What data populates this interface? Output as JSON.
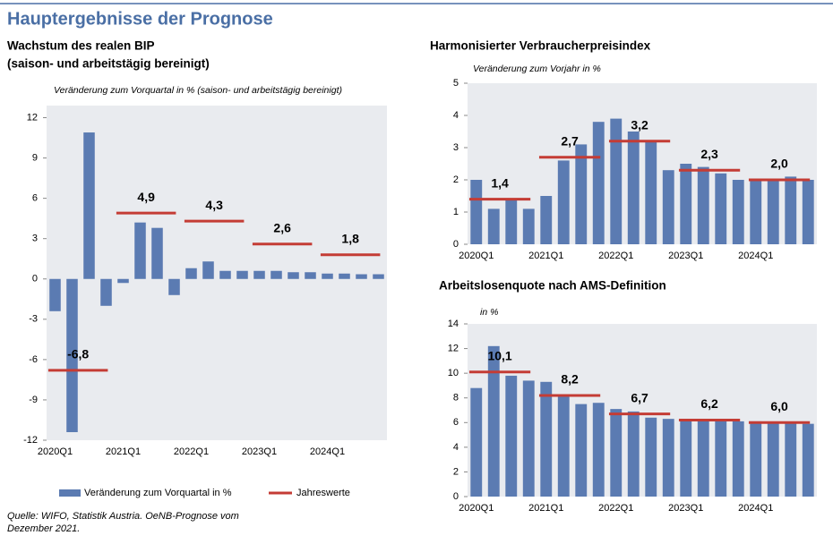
{
  "header": {
    "title": "Hauptergebnisse der Prognose"
  },
  "source": [
    "Quelle: WIFO, Statistik Austria. OeNB-Prognose vom",
    "Dezember 2021."
  ],
  "chart_data": [
    {
      "type": "bar",
      "title": [
        "Wachstum des realen BIP",
        "(saison- und arbeitstägig bereinigt)"
      ],
      "subtitle": "Veränderung zum Vorquartal in % (saison- und arbeitstägig bereinigt)",
      "categories": [
        "2020Q1",
        null,
        null,
        null,
        "2021Q1",
        null,
        null,
        null,
        "2022Q1",
        null,
        null,
        null,
        "2023Q1",
        null,
        null,
        null,
        "2024Q1",
        null,
        null,
        null
      ],
      "series": [
        {
          "name": "Veränderung zum Vorquartal in %",
          "color": "#5b7bb2",
          "values": [
            -2.4,
            -11.4,
            10.9,
            -2.0,
            -0.3,
            4.2,
            3.8,
            -1.2,
            0.8,
            1.3,
            0.6,
            0.6,
            0.6,
            0.6,
            0.5,
            0.5,
            0.4,
            0.4,
            0.35,
            0.35
          ]
        }
      ],
      "annual": {
        "name": "Jahreswerte",
        "color": "#c43c35",
        "values": [
          -6.8,
          4.9,
          4.3,
          2.6,
          1.8
        ],
        "value_labels": [
          "-6,8",
          "4,9",
          "4,3",
          "2,6",
          "1,8"
        ]
      },
      "ylim": [
        -12,
        12.9
      ],
      "yticks": [
        -12,
        -9,
        -6,
        -3,
        0,
        3,
        6,
        9,
        12
      ],
      "legend": true
    },
    {
      "type": "bar",
      "title": [
        "Harmonisierter Verbraucherpreisindex"
      ],
      "subtitle": "Veränderung zum Vorjahr in %",
      "categories": [
        "2020Q1",
        null,
        null,
        null,
        "2021Q1",
        null,
        null,
        null,
        "2022Q1",
        null,
        null,
        null,
        "2023Q1",
        null,
        null,
        null,
        "2024Q1",
        null,
        null,
        null
      ],
      "series": [
        {
          "color": "#5b7bb2",
          "values": [
            2.0,
            1.1,
            1.4,
            1.1,
            1.5,
            2.6,
            3.1,
            3.8,
            3.9,
            3.5,
            3.2,
            2.3,
            2.5,
            2.4,
            2.2,
            2.0,
            2.0,
            2.0,
            2.1,
            2.0
          ]
        }
      ],
      "annual": {
        "color": "#c43c35",
        "values": [
          1.4,
          2.7,
          3.2,
          2.3,
          2.0
        ],
        "value_labels": [
          "1,4",
          "2,7",
          "3,2",
          "2,3",
          "2,0"
        ]
      },
      "ylim": [
        0,
        5
      ],
      "yticks": [
        0,
        1,
        2,
        3,
        4,
        5
      ]
    },
    {
      "type": "bar",
      "title": [
        "Arbeitslosenquote nach AMS-Definition"
      ],
      "subtitle": "in %",
      "categories": [
        "2020Q1",
        null,
        null,
        null,
        "2021Q1",
        null,
        null,
        null,
        "2022Q1",
        null,
        null,
        null,
        "2023Q1",
        null,
        null,
        null,
        "2024Q1",
        null,
        null,
        null
      ],
      "series": [
        {
          "color": "#5b7bb2",
          "values": [
            8.8,
            12.2,
            9.8,
            9.4,
            9.3,
            8.2,
            7.5,
            7.6,
            7.1,
            6.9,
            6.4,
            6.3,
            6.2,
            6.2,
            6.2,
            6.1,
            6.1,
            6.0,
            6.0,
            5.9
          ]
        }
      ],
      "annual": {
        "color": "#c43c35",
        "values": [
          10.1,
          8.2,
          6.7,
          6.2,
          6.0
        ],
        "value_labels": [
          "10,1",
          "8,2",
          "6,7",
          "6,2",
          "6,0"
        ]
      },
      "ylim": [
        0,
        14
      ],
      "yticks": [
        0,
        2,
        4,
        6,
        8,
        10,
        12,
        14
      ]
    }
  ]
}
